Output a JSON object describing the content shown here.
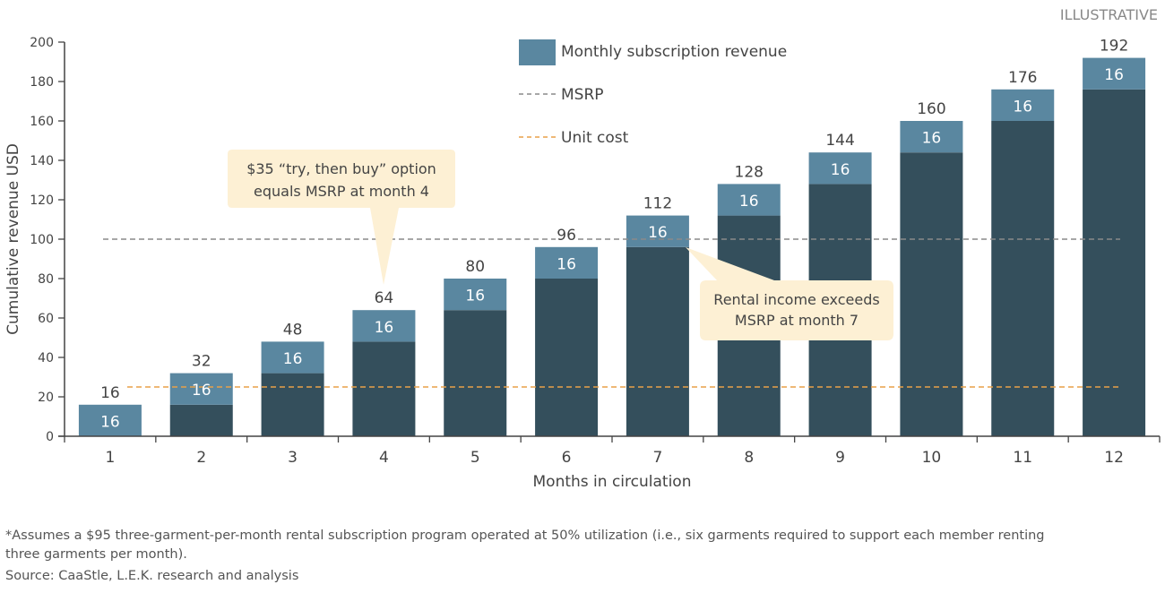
{
  "label_top_right": "ILLUSTRATIVE",
  "chart_data": {
    "type": "bar",
    "stacked": true,
    "xlabel": "Months in circulation",
    "ylabel": "Cumulative revenue USD",
    "ylim": [
      0,
      200
    ],
    "yticks": [
      0,
      20,
      40,
      60,
      80,
      100,
      120,
      140,
      160,
      180,
      200
    ],
    "categories": [
      "1",
      "2",
      "3",
      "4",
      "5",
      "6",
      "7",
      "8",
      "9",
      "10",
      "11",
      "12"
    ],
    "series": [
      {
        "role": "cumulative-base",
        "values": [
          0,
          16,
          32,
          48,
          64,
          80,
          96,
          112,
          128,
          144,
          160,
          176
        ],
        "color": "#344f5c"
      },
      {
        "name": "Monthly subscription revenue",
        "values": [
          16,
          16,
          16,
          16,
          16,
          16,
          16,
          16,
          16,
          16,
          16,
          16
        ],
        "color": "#5a87a0"
      }
    ],
    "totals": [
      16,
      32,
      48,
      64,
      80,
      96,
      112,
      128,
      144,
      160,
      176,
      192
    ],
    "reference_lines": [
      {
        "name": "MSRP",
        "value": 100,
        "color": "#8a8a8a",
        "style": "dashed"
      },
      {
        "name": "Unit cost",
        "value": 25,
        "color": "#e8a048",
        "style": "dashed"
      }
    ],
    "legend_placement": "top-center",
    "grid": false,
    "annotations": [
      {
        "lines": [
          "$35 “try, then buy” option",
          "equals MSRP at month 4"
        ],
        "points_to_month": 4
      },
      {
        "lines": [
          "Rental income exceeds",
          "MSRP at month 7"
        ],
        "points_to_month": 7
      }
    ],
    "annotation_fill": "#fdf0d4"
  },
  "footnote": {
    "line1": "*Assumes a $95 three-garment-per-month rental subscription program operated at 50% utilization (i.e., six garments required to support each member renting three garments per month).",
    "source": "Source: CaaStle, L.E.K. research and analysis"
  }
}
